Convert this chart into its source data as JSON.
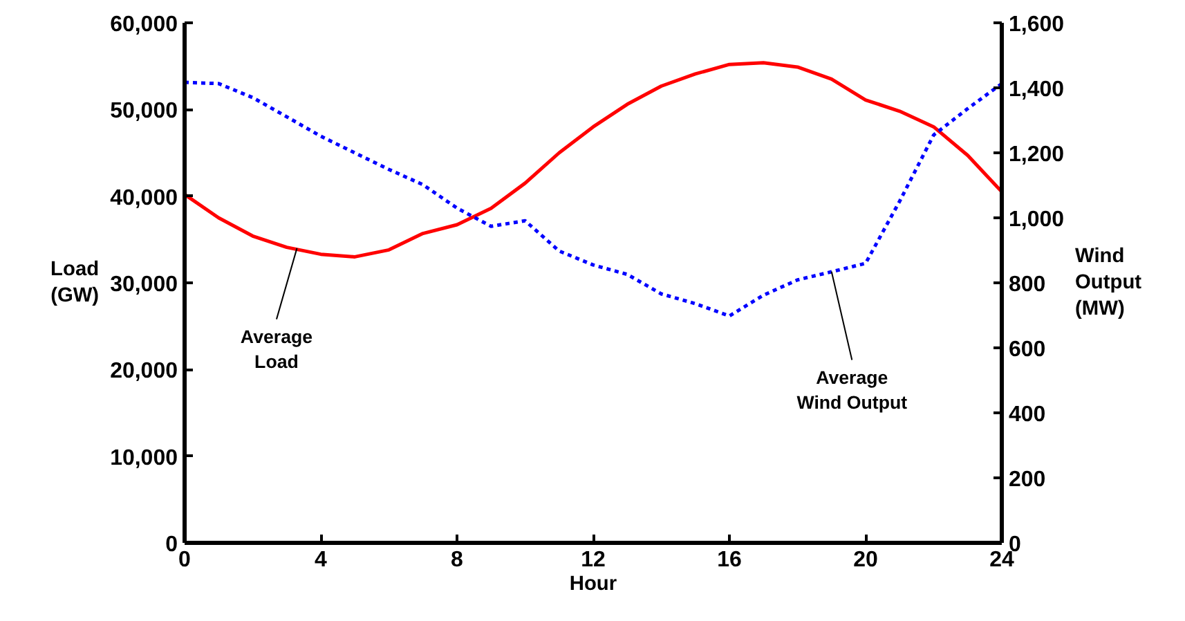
{
  "chart_data": {
    "type": "line",
    "xlabel": "Hour",
    "ylabel": "Load\n(GW)",
    "y2label": "Wind\nOutput\n(MW)",
    "x": [
      0,
      1,
      2,
      3,
      4,
      5,
      6,
      7,
      8,
      9,
      10,
      11,
      12,
      13,
      14,
      15,
      16,
      17,
      18,
      19,
      20,
      21,
      22,
      23,
      24
    ],
    "xlim": [
      0,
      24
    ],
    "xticks": [
      0,
      4,
      8,
      12,
      16,
      20,
      24
    ],
    "ylim": [
      0,
      60000
    ],
    "yticks": [
      {
        "value": 0,
        "label": "0"
      },
      {
        "value": 10000,
        "label": "10,000"
      },
      {
        "value": 20000,
        "label": "20,000"
      },
      {
        "value": 30000,
        "label": "30,000"
      },
      {
        "value": 40000,
        "label": "40,000"
      },
      {
        "value": 50000,
        "label": "50,000"
      },
      {
        "value": 60000,
        "label": "60,000"
      }
    ],
    "y2lim": [
      0,
      1600
    ],
    "y2ticks": [
      0,
      200,
      400,
      600,
      800,
      {
        "value": 1000,
        "label": "1,000"
      },
      {
        "value": 1200,
        "label": "1,200"
      },
      {
        "value": 1400,
        "label": "1,400"
      },
      {
        "value": 1600,
        "label": "1,600"
      }
    ],
    "series": [
      {
        "color": "#ff0000",
        "line_style": "solid",
        "values": [
          40200,
          37500,
          35400,
          34100,
          33300,
          33000,
          33800,
          35700,
          36700,
          38600,
          41500,
          45000,
          48000,
          50600,
          52700,
          54100,
          55200,
          55400,
          54900,
          53500,
          51100,
          49800,
          48000,
          44700,
          40500
        ]
      },
      {
        "color": "#0000ff",
        "line_style": "dotted",
        "axis": "y2",
        "values": [
          1417,
          1413,
          1370,
          1311,
          1251,
          1200,
          1149,
          1102,
          1030,
          974,
          991,
          898,
          855,
          826,
          766,
          736,
          698,
          762,
          809,
          834,
          860,
          1051,
          1255,
          1336,
          1413
        ]
      }
    ],
    "annotations": [
      {
        "text": "Average\nLoad",
        "x": 3.3,
        "y": 34000
      },
      {
        "text": "Average\nWind Output",
        "x": 19,
        "y": 31300
      }
    ],
    "grid": false,
    "marker": "none"
  }
}
